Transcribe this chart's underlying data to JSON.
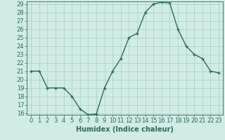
{
  "xlabel": "Humidex (Indice chaleur)",
  "ylabel": "",
  "x": [
    0,
    1,
    2,
    3,
    4,
    5,
    6,
    7,
    8,
    9,
    10,
    11,
    12,
    13,
    14,
    15,
    16,
    17,
    18,
    19,
    20,
    21,
    22,
    23
  ],
  "y": [
    21,
    21,
    19,
    19,
    19,
    18,
    16.5,
    15.8,
    15.9,
    19,
    21,
    22.5,
    25,
    25.5,
    28,
    29,
    29.2,
    29.1,
    26,
    24,
    23,
    22.5,
    21,
    20.8
  ],
  "line_color": "#2d6b5e",
  "marker_color": "#2d6b5e",
  "bg_color": "#d1ebe6",
  "grid_color": "#a8cfc8",
  "ylim": [
    16,
    29
  ],
  "xlim": [
    -0.5,
    23.5
  ],
  "yticks": [
    16,
    17,
    18,
    19,
    20,
    21,
    22,
    23,
    24,
    25,
    26,
    27,
    28,
    29
  ],
  "xticks": [
    0,
    1,
    2,
    3,
    4,
    5,
    6,
    7,
    8,
    9,
    10,
    11,
    12,
    13,
    14,
    15,
    16,
    17,
    18,
    19,
    20,
    21,
    22,
    23
  ],
  "xlabel_fontsize": 7,
  "tick_fontsize": 6,
  "marker_size": 3,
  "line_width": 1.0
}
